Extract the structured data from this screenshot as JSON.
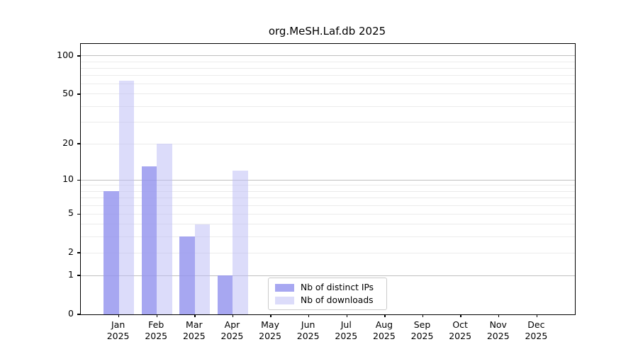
{
  "chart_data": {
    "type": "bar",
    "title": "org.MeSH.Laf.db 2025",
    "categories": [
      "Jan",
      "Feb",
      "Mar",
      "Apr",
      "May",
      "Jun",
      "Jul",
      "Aug",
      "Sep",
      "Oct",
      "Nov",
      "Dec"
    ],
    "x_tick_year": "2025",
    "series": [
      {
        "name": "Nb of distinct IPs",
        "color": "#a7a7f1",
        "fill_rgba": "rgba(148,148,238,0.82)",
        "values": [
          8,
          13,
          3,
          1,
          0,
          0,
          0,
          0,
          0,
          0,
          0,
          0
        ]
      },
      {
        "name": "Nb of downloads",
        "color": "#dcdcfa",
        "fill_rgba": "rgba(185,185,245,0.5)",
        "values": [
          64,
          20,
          4,
          12,
          0,
          0,
          0,
          0,
          0,
          0,
          0,
          0
        ]
      }
    ],
    "y_scale": "log1p",
    "y_ticks": [
      0,
      1,
      2,
      5,
      10,
      20,
      50,
      100
    ],
    "y_major_gridlines": [
      1,
      10,
      100
    ],
    "y_minor_gridlines": [
      2,
      3,
      4,
      5,
      6,
      7,
      8,
      9,
      20,
      30,
      40,
      50,
      60,
      70,
      80,
      90
    ],
    "ylim": [
      0,
      124
    ],
    "grid": true,
    "legend_position": "lower center"
  },
  "colors": {
    "background": "#ffffff",
    "axis": "#000000",
    "major_grid": "#c0c0c0",
    "minor_grid": "#ebebeb",
    "legend_border": "#cbcbcb"
  }
}
